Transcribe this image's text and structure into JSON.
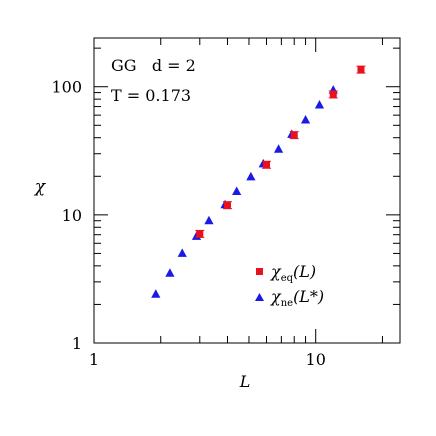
{
  "chart_data": {
    "type": "scatter",
    "x_scale": "log",
    "y_scale": "log",
    "xlim": [
      1,
      24
    ],
    "ylim": [
      1,
      240
    ],
    "xlabel": "L",
    "ylabel": "χ",
    "x_tick_labels": [
      {
        "value": 1,
        "label": "1"
      },
      {
        "value": 10,
        "label": "10"
      }
    ],
    "y_tick_labels": [
      {
        "value": 1,
        "label": "1"
      },
      {
        "value": 10,
        "label": "10"
      },
      {
        "value": 100,
        "label": "100"
      }
    ],
    "annotations": {
      "model_line": "GG   d = 2",
      "temperature_line": "T = 0.173"
    },
    "grid": false,
    "legend_position": "bottom-right",
    "series": [
      {
        "name": "χeq(L)",
        "label_main": "χ",
        "label_sub": "eq",
        "label_arg": "(L)",
        "marker": "square",
        "color": "#e8121f",
        "x": [
          3,
          4,
          6,
          8,
          12,
          16
        ],
        "y": [
          7.1,
          11.9,
          24.6,
          41.9,
          87.0,
          136.0
        ]
      },
      {
        "name": "χne(L*)",
        "label_main": "χ",
        "label_sub": "ne",
        "label_arg": "(L*)",
        "marker": "triangle",
        "color": "#1a1ae6",
        "x": [
          1.9,
          2.2,
          2.5,
          2.9,
          3.3,
          3.9,
          4.4,
          5.1,
          5.8,
          6.8,
          7.8,
          9.0,
          10.4,
          12.0
        ],
        "y": [
          2.4,
          3.5,
          5.0,
          6.8,
          9.0,
          12.0,
          15.2,
          19.8,
          25.0,
          32.5,
          42.5,
          55.0,
          72.0,
          94.0
        ]
      }
    ]
  }
}
